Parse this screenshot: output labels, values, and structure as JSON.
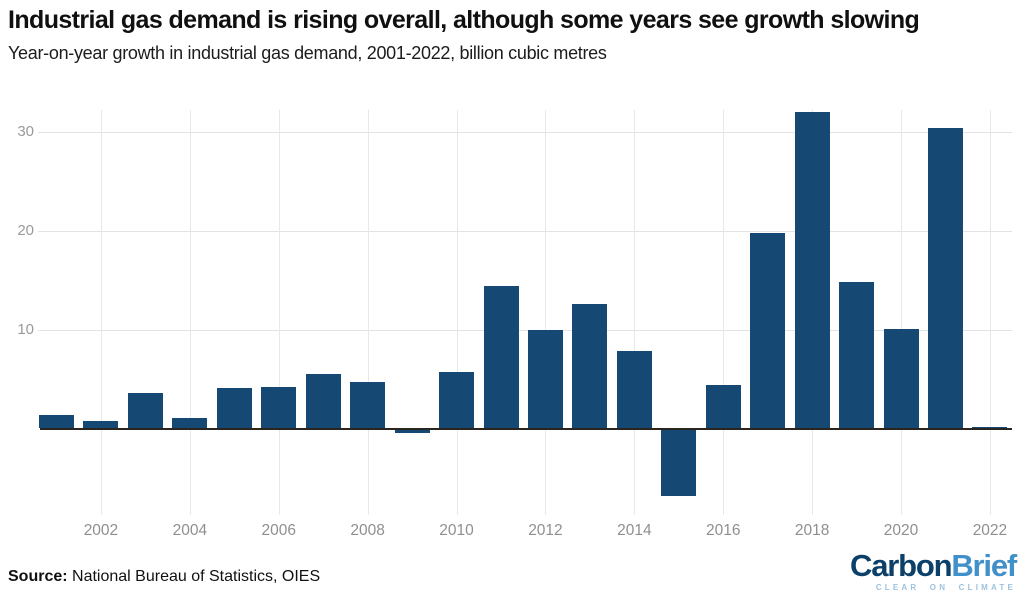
{
  "header": {
    "title": "Industrial gas demand is rising overall, although some years see growth slowing",
    "subtitle": "Year-on-year growth in industrial gas demand, 2001-2022, billion cubic metres"
  },
  "footer": {
    "source_label": "Source:",
    "source_text": " National Bureau of Statistics, OIES",
    "logo_part1": "Carbon",
    "logo_part2": "Brief",
    "logo_tagline": "CLEAR ON CLIMATE"
  },
  "colors": {
    "bar": "#154973",
    "grid_h": "#e3e3e3",
    "grid_v": "#e8e8e8",
    "axis_tick_text": "#9a9a9a",
    "zero_line": "#2b2520",
    "title_text": "#101010",
    "logo_dark": "#0d4069",
    "logo_light": "#4090c9",
    "logo_tagline": "#9cc3de"
  },
  "chart_data": {
    "type": "bar",
    "title": "Industrial gas demand is rising overall, although some years see growth slowing",
    "subtitle": "Year-on-year growth in industrial gas demand, 2001-2022, billion cubic metres",
    "xlabel": "",
    "ylabel": "billion cubic metres",
    "categories": [
      2001,
      2002,
      2003,
      2004,
      2005,
      2006,
      2007,
      2008,
      2009,
      2010,
      2011,
      2012,
      2013,
      2014,
      2015,
      2016,
      2017,
      2018,
      2019,
      2020,
      2021,
      2022
    ],
    "values": [
      1.4,
      0.8,
      3.6,
      1.1,
      4.1,
      4.2,
      5.5,
      4.7,
      -0.5,
      5.7,
      14.4,
      10.0,
      12.6,
      7.8,
      -6.8,
      4.4,
      19.7,
      32.0,
      14.8,
      10.1,
      30.4,
      0.2
    ],
    "yticks": [
      10,
      20,
      30
    ],
    "xticks": [
      2002,
      2004,
      2006,
      2008,
      2010,
      2012,
      2014,
      2016,
      2018,
      2020,
      2022
    ],
    "ylim": [
      -8.7,
      32.2
    ],
    "grid": true,
    "legend": "none",
    "bar_color": "#154973"
  }
}
